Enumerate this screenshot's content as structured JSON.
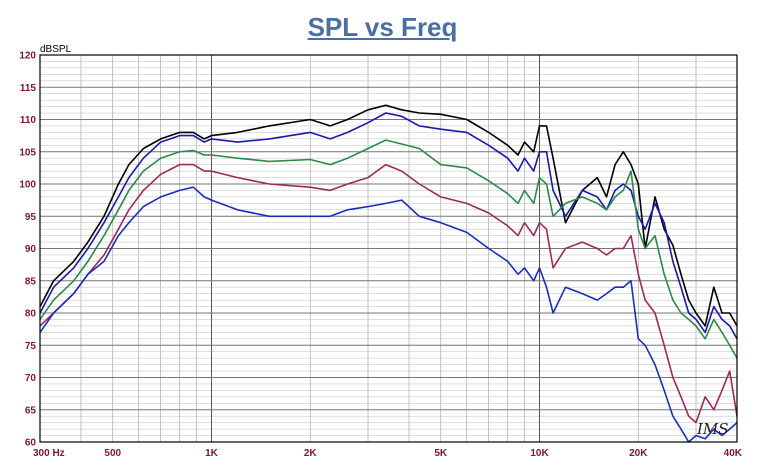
{
  "title": "SPL vs Freq",
  "signature": "IMS",
  "chart_data": {
    "type": "line",
    "title": "SPL vs Freq",
    "ylabel": "dBSPL",
    "xlabel": "",
    "xscale": "log",
    "xlim": [
      300,
      40000
    ],
    "ylim": [
      60,
      120
    ],
    "grid": true,
    "yticks": [
      60,
      65,
      70,
      75,
      80,
      85,
      90,
      95,
      100,
      105,
      110,
      115,
      120
    ],
    "xtick_labels": [
      {
        "value": 300,
        "label": "300 Hz"
      },
      {
        "value": 500,
        "label": "500"
      },
      {
        "value": 1000,
        "label": "1K"
      },
      {
        "value": 2000,
        "label": "2K"
      },
      {
        "value": 5000,
        "label": "5K"
      },
      {
        "value": 10000,
        "label": "10K"
      },
      {
        "value": 20000,
        "label": "20K"
      },
      {
        "value": 40000,
        "label": "40K"
      }
    ],
    "series": [
      {
        "color": "#000000",
        "points": [
          [
            300,
            81
          ],
          [
            330,
            85
          ],
          [
            380,
            88
          ],
          [
            420,
            91
          ],
          [
            470,
            95
          ],
          [
            520,
            100
          ],
          [
            560,
            103
          ],
          [
            620,
            105.5
          ],
          [
            700,
            107
          ],
          [
            800,
            108
          ],
          [
            880,
            108
          ],
          [
            950,
            107
          ],
          [
            1000,
            107.5
          ],
          [
            1200,
            108
          ],
          [
            1500,
            109
          ],
          [
            2000,
            110
          ],
          [
            2300,
            109
          ],
          [
            2600,
            110
          ],
          [
            3000,
            111.5
          ],
          [
            3400,
            112.2
          ],
          [
            3800,
            111.5
          ],
          [
            4300,
            111
          ],
          [
            5000,
            110.8
          ],
          [
            6000,
            110
          ],
          [
            7000,
            108
          ],
          [
            8000,
            106
          ],
          [
            8600,
            104.5
          ],
          [
            9000,
            106.5
          ],
          [
            9600,
            105
          ],
          [
            10000,
            109
          ],
          [
            10500,
            109
          ],
          [
            11000,
            104
          ],
          [
            12000,
            94
          ],
          [
            13500,
            99
          ],
          [
            15000,
            101
          ],
          [
            16000,
            98
          ],
          [
            17000,
            103
          ],
          [
            18000,
            105
          ],
          [
            19000,
            103
          ],
          [
            20000,
            100
          ],
          [
            21000,
            90
          ],
          [
            22500,
            98
          ],
          [
            24000,
            93
          ],
          [
            25500,
            90.5
          ],
          [
            27000,
            86
          ],
          [
            28500,
            82
          ],
          [
            30000,
            80
          ],
          [
            32000,
            78
          ],
          [
            34000,
            84
          ],
          [
            36000,
            80
          ],
          [
            38000,
            80
          ],
          [
            40000,
            78
          ]
        ]
      },
      {
        "color": "#1a1aa8",
        "points": [
          [
            300,
            80
          ],
          [
            330,
            84
          ],
          [
            380,
            87
          ],
          [
            420,
            90
          ],
          [
            470,
            94
          ],
          [
            520,
            98
          ],
          [
            560,
            101
          ],
          [
            620,
            104
          ],
          [
            700,
            106.5
          ],
          [
            800,
            107.5
          ],
          [
            880,
            107.5
          ],
          [
            950,
            106.5
          ],
          [
            1000,
            107
          ],
          [
            1200,
            106.5
          ],
          [
            1500,
            107
          ],
          [
            2000,
            108
          ],
          [
            2300,
            107
          ],
          [
            2600,
            108
          ],
          [
            3000,
            109.5
          ],
          [
            3400,
            111
          ],
          [
            3800,
            110.5
          ],
          [
            4300,
            109
          ],
          [
            5000,
            108.5
          ],
          [
            6000,
            108
          ],
          [
            7000,
            106
          ],
          [
            8000,
            104
          ],
          [
            8600,
            102
          ],
          [
            9000,
            104
          ],
          [
            9600,
            102
          ],
          [
            10000,
            105
          ],
          [
            10500,
            105
          ],
          [
            11000,
            99
          ],
          [
            12000,
            95
          ],
          [
            13500,
            99
          ],
          [
            15000,
            98
          ],
          [
            16000,
            96
          ],
          [
            17000,
            99
          ],
          [
            18000,
            100
          ],
          [
            19000,
            99
          ],
          [
            20000,
            95
          ],
          [
            21000,
            93
          ],
          [
            22500,
            97
          ],
          [
            24000,
            94
          ],
          [
            25500,
            88
          ],
          [
            27000,
            84
          ],
          [
            28500,
            80
          ],
          [
            30000,
            79
          ],
          [
            32000,
            77
          ],
          [
            34000,
            81
          ],
          [
            36000,
            79
          ],
          [
            38000,
            78
          ],
          [
            40000,
            76
          ]
        ]
      },
      {
        "color": "#2a8a4a",
        "points": [
          [
            300,
            79
          ],
          [
            330,
            82
          ],
          [
            380,
            85
          ],
          [
            420,
            88
          ],
          [
            470,
            92
          ],
          [
            520,
            96
          ],
          [
            560,
            99
          ],
          [
            620,
            102
          ],
          [
            700,
            104
          ],
          [
            800,
            105
          ],
          [
            880,
            105.2
          ],
          [
            950,
            104.5
          ],
          [
            1000,
            104.5
          ],
          [
            1200,
            104
          ],
          [
            1500,
            103.5
          ],
          [
            2000,
            103.8
          ],
          [
            2300,
            103
          ],
          [
            2600,
            104
          ],
          [
            3000,
            105.5
          ],
          [
            3400,
            106.8
          ],
          [
            3800,
            106.2
          ],
          [
            4300,
            105.5
          ],
          [
            5000,
            103
          ],
          [
            6000,
            102.5
          ],
          [
            7000,
            100.5
          ],
          [
            8000,
            98.5
          ],
          [
            8600,
            97
          ],
          [
            9000,
            99
          ],
          [
            9600,
            97
          ],
          [
            10000,
            101
          ],
          [
            10500,
            100
          ],
          [
            11000,
            95
          ],
          [
            12000,
            97
          ],
          [
            13500,
            98
          ],
          [
            15000,
            97
          ],
          [
            16000,
            96
          ],
          [
            17000,
            98
          ],
          [
            18000,
            99
          ],
          [
            19000,
            102
          ],
          [
            20000,
            93
          ],
          [
            21000,
            90
          ],
          [
            22500,
            92
          ],
          [
            24000,
            86
          ],
          [
            25500,
            82
          ],
          [
            27000,
            80
          ],
          [
            28500,
            79
          ],
          [
            30000,
            78
          ],
          [
            32000,
            76
          ],
          [
            34000,
            79
          ],
          [
            36000,
            77
          ],
          [
            38000,
            75
          ],
          [
            40000,
            73
          ]
        ]
      },
      {
        "color": "#9a2a5a",
        "points": [
          [
            300,
            78
          ],
          [
            330,
            80
          ],
          [
            380,
            83
          ],
          [
            420,
            86
          ],
          [
            470,
            89
          ],
          [
            520,
            93
          ],
          [
            560,
            96
          ],
          [
            620,
            99
          ],
          [
            700,
            101.5
          ],
          [
            800,
            103
          ],
          [
            880,
            103
          ],
          [
            950,
            102
          ],
          [
            1000,
            102
          ],
          [
            1200,
            101
          ],
          [
            1500,
            100
          ],
          [
            2000,
            99.5
          ],
          [
            2300,
            99
          ],
          [
            2600,
            100
          ],
          [
            3000,
            101
          ],
          [
            3400,
            103
          ],
          [
            3800,
            102
          ],
          [
            4300,
            100
          ],
          [
            5000,
            98
          ],
          [
            6000,
            97
          ],
          [
            7000,
            95.5
          ],
          [
            8000,
            93.5
          ],
          [
            8600,
            92
          ],
          [
            9000,
            94
          ],
          [
            9600,
            92
          ],
          [
            10000,
            94
          ],
          [
            10500,
            93
          ],
          [
            11000,
            87
          ],
          [
            12000,
            90
          ],
          [
            13500,
            91
          ],
          [
            15000,
            90
          ],
          [
            16000,
            89
          ],
          [
            17000,
            90
          ],
          [
            18000,
            90
          ],
          [
            19000,
            92
          ],
          [
            20000,
            86
          ],
          [
            21000,
            82
          ],
          [
            22500,
            80
          ],
          [
            24000,
            75
          ],
          [
            25500,
            70
          ],
          [
            27000,
            67
          ],
          [
            28500,
            64
          ],
          [
            30000,
            63
          ],
          [
            32000,
            67
          ],
          [
            34000,
            65
          ],
          [
            36000,
            68
          ],
          [
            38000,
            71
          ],
          [
            40000,
            64
          ]
        ]
      },
      {
        "color": "#1a2fb8",
        "points": [
          [
            300,
            77
          ],
          [
            330,
            80
          ],
          [
            380,
            83
          ],
          [
            420,
            86
          ],
          [
            470,
            88
          ],
          [
            520,
            92
          ],
          [
            560,
            94
          ],
          [
            620,
            96.5
          ],
          [
            700,
            98
          ],
          [
            800,
            99
          ],
          [
            880,
            99.5
          ],
          [
            950,
            98
          ],
          [
            1000,
            97.5
          ],
          [
            1200,
            96
          ],
          [
            1500,
            95
          ],
          [
            2000,
            95
          ],
          [
            2300,
            95
          ],
          [
            2600,
            96
          ],
          [
            3000,
            96.5
          ],
          [
            3400,
            97
          ],
          [
            3800,
            97.5
          ],
          [
            4300,
            95
          ],
          [
            5000,
            94
          ],
          [
            6000,
            92.5
          ],
          [
            7000,
            90
          ],
          [
            8000,
            88
          ],
          [
            8600,
            86
          ],
          [
            9000,
            87
          ],
          [
            9600,
            85
          ],
          [
            10000,
            87
          ],
          [
            10500,
            84
          ],
          [
            11000,
            80
          ],
          [
            12000,
            84
          ],
          [
            13500,
            83
          ],
          [
            15000,
            82
          ],
          [
            16000,
            83
          ],
          [
            17000,
            84
          ],
          [
            18000,
            84
          ],
          [
            19000,
            85
          ],
          [
            20000,
            76
          ],
          [
            21000,
            75
          ],
          [
            22500,
            72
          ],
          [
            24000,
            68
          ],
          [
            25500,
            64
          ],
          [
            27000,
            62
          ],
          [
            28500,
            60
          ],
          [
            30000,
            61
          ],
          [
            32000,
            60.5
          ],
          [
            34000,
            62
          ],
          [
            36000,
            61
          ],
          [
            38000,
            62
          ],
          [
            40000,
            63
          ]
        ]
      }
    ]
  }
}
